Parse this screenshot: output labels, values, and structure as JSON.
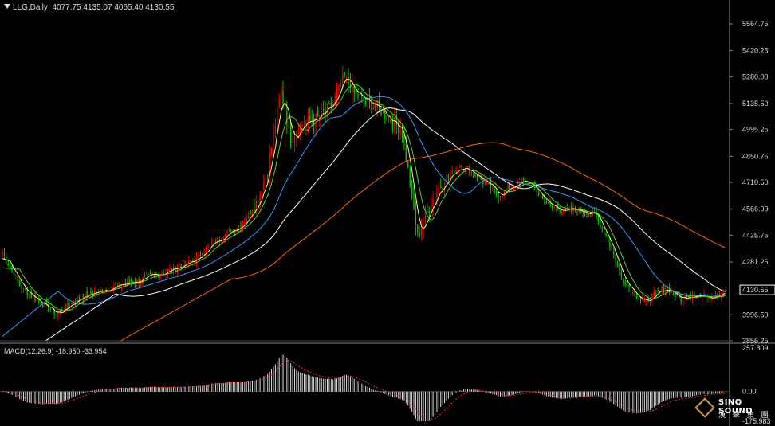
{
  "header": {
    "symbol": "LLG,Daily",
    "ohlc": "4077.75 4135.07 4065.40 4130.55"
  },
  "price_axis": {
    "ticks": [
      "5564.75",
      "5420.25",
      "5280.00",
      "5135.50",
      "4995.25",
      "4850.75",
      "4710.50",
      "4566.00",
      "4425.75",
      "4281.25",
      "3996.50",
      "3856.25"
    ],
    "current_price": "4130.55"
  },
  "macd_panel": {
    "label": "MACD(12,26,9) -18.950 -33.954",
    "ticks": [
      "257.809",
      "0.00",
      "-175.983"
    ]
  },
  "logo": {
    "name": "SINO SOUND",
    "chinese": "漢 聲 集 團"
  },
  "colors": {
    "up": "#ff0000",
    "down": "#00cc00",
    "ma_yellow": "#ffff66",
    "ma_green": "#66cc33",
    "ma_blue": "#3399ff",
    "ma_white": "#ffffff",
    "ma_orange": "#ff6600",
    "macd_hist": "#dddddd",
    "macd_signal": "#ff3333"
  },
  "chart_data": {
    "type": "candlestick",
    "ylim": [
      3856.25,
      5564.75
    ],
    "macd_ylim": [
      -175.983,
      257.809
    ],
    "grid": false,
    "anchors_close": [
      [
        0,
        4330
      ],
      [
        10,
        4140
      ],
      [
        20,
        4060
      ],
      [
        28,
        4000
      ],
      [
        40,
        4090
      ],
      [
        55,
        4140
      ],
      [
        70,
        4180
      ],
      [
        85,
        4230
      ],
      [
        100,
        4290
      ],
      [
        110,
        4390
      ],
      [
        125,
        4490
      ],
      [
        132,
        4600
      ],
      [
        138,
        4780
      ],
      [
        145,
        5200
      ],
      [
        150,
        4950
      ],
      [
        155,
        5020
      ],
      [
        165,
        5060
      ],
      [
        172,
        5130
      ],
      [
        178,
        5280
      ],
      [
        183,
        5190
      ],
      [
        188,
        5150
      ],
      [
        195,
        5120
      ],
      [
        202,
        5050
      ],
      [
        208,
        4990
      ],
      [
        212,
        4700
      ],
      [
        216,
        4420
      ],
      [
        220,
        4520
      ],
      [
        225,
        4650
      ],
      [
        230,
        4720
      ],
      [
        238,
        4800
      ],
      [
        245,
        4760
      ],
      [
        252,
        4700
      ],
      [
        258,
        4640
      ],
      [
        265,
        4690
      ],
      [
        272,
        4720
      ],
      [
        278,
        4660
      ],
      [
        285,
        4580
      ],
      [
        292,
        4560
      ],
      [
        300,
        4560
      ],
      [
        308,
        4540
      ],
      [
        315,
        4400
      ],
      [
        322,
        4200
      ],
      [
        328,
        4120
      ],
      [
        334,
        4060
      ],
      [
        340,
        4110
      ],
      [
        346,
        4140
      ],
      [
        352,
        4080
      ],
      [
        360,
        4110
      ],
      [
        366,
        4090
      ],
      [
        372,
        4110
      ],
      [
        376,
        4130
      ]
    ],
    "last_close": 4130.55
  }
}
